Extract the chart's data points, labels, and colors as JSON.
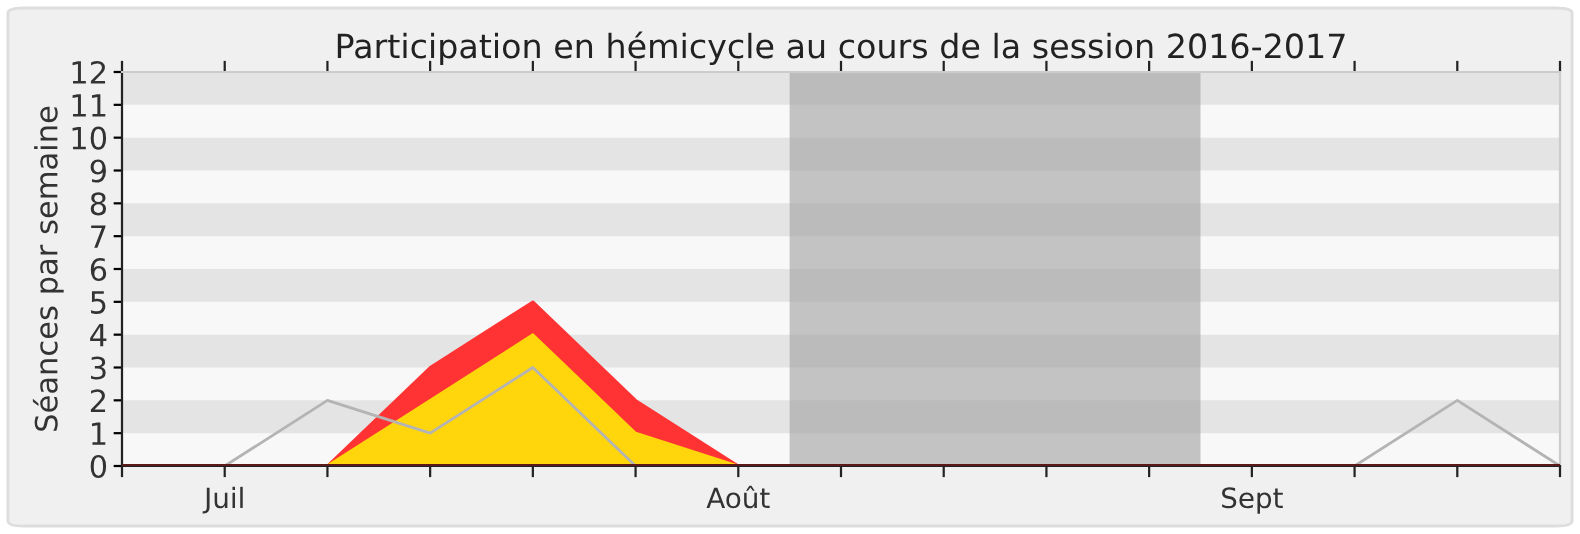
{
  "chart_data": {
    "type": "area",
    "title": "Participation en hémicycle au cours de la session 2016-2017",
    "ylabel": "Séances par semaine",
    "categories": [
      null,
      "Juil",
      null,
      null,
      null,
      null,
      "Août",
      null,
      null,
      null,
      null,
      "Sept",
      null,
      null,
      null
    ],
    "series": [
      {
        "type": "line",
        "color": "#b4b4b4",
        "values": [
          null,
          0,
          2,
          1,
          3,
          0,
          0,
          0,
          0,
          0,
          0,
          0,
          0,
          2,
          0
        ]
      },
      {
        "color": "#ff3333",
        "values": [
          0,
          0,
          0,
          3,
          5,
          2,
          0,
          0,
          0,
          0,
          0,
          0,
          0,
          0,
          0
        ]
      },
      {
        "color": "#ffd50b",
        "values": [
          0,
          0,
          0,
          2,
          4,
          1,
          0,
          0,
          0,
          0,
          0,
          0,
          0,
          0,
          0
        ]
      }
    ],
    "ylim": [
      0,
      12
    ],
    "yticks": [
      0,
      1,
      2,
      3,
      4,
      5,
      6,
      7,
      8,
      9,
      10,
      11,
      12
    ],
    "grid": false
  }
}
